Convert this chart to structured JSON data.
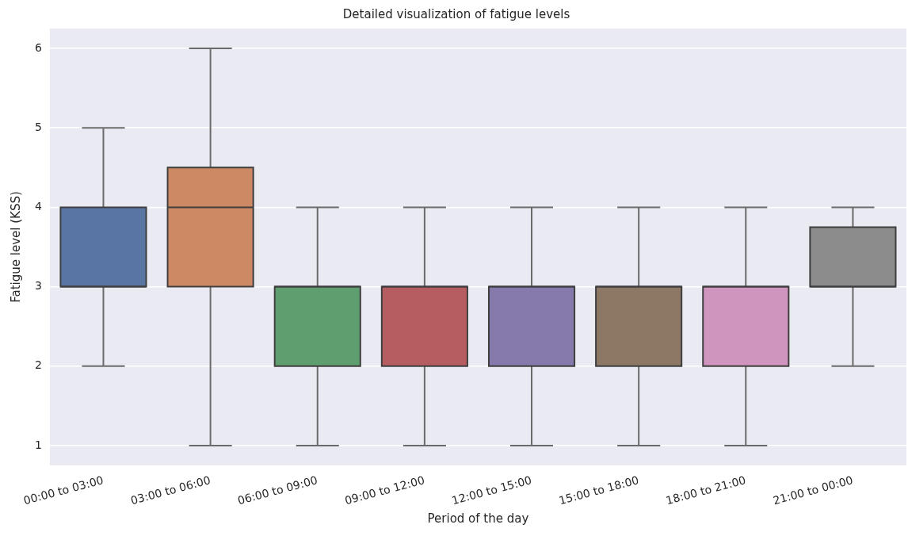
{
  "chart_data": {
    "type": "box",
    "title": "Detailed visualization of fatigue levels",
    "xlabel": "Period of the day",
    "ylabel": "Fatigue level (KSS)",
    "categories": [
      "00:00 to 03:00",
      "03:00 to 06:00",
      "06:00 to 09:00",
      "09:00 to 12:00",
      "12:00 to 15:00",
      "15:00 to 18:00",
      "18:00 to 21:00",
      "21:00 to 00:00"
    ],
    "boxes": [
      {
        "low": 2,
        "q1": 3,
        "median": 3,
        "q3": 4,
        "high": 5
      },
      {
        "low": 1,
        "q1": 3,
        "median": 4,
        "q3": 4.5,
        "high": 6
      },
      {
        "low": 1,
        "q1": 2,
        "median": 3,
        "q3": 3,
        "high": 4
      },
      {
        "low": 1,
        "q1": 2,
        "median": 3,
        "q3": 3,
        "high": 4
      },
      {
        "low": 1,
        "q1": 2,
        "median": 3,
        "q3": 3,
        "high": 4
      },
      {
        "low": 1,
        "q1": 2,
        "median": 3,
        "q3": 3,
        "high": 4
      },
      {
        "low": 1,
        "q1": 2,
        "median": 3,
        "q3": 3,
        "high": 4
      },
      {
        "low": 2,
        "q1": 3,
        "median": 3,
        "q3": 3.75,
        "high": 4
      }
    ],
    "colors": [
      "#5875a4",
      "#cc8963",
      "#5f9e6e",
      "#b55d60",
      "#857aab",
      "#8d7866",
      "#d095bf",
      "#8c8c8c"
    ],
    "ylim": [
      0.75,
      6.25
    ],
    "yticks": [
      1,
      2,
      3,
      4,
      5,
      6
    ],
    "grid": "y",
    "legend": false
  }
}
